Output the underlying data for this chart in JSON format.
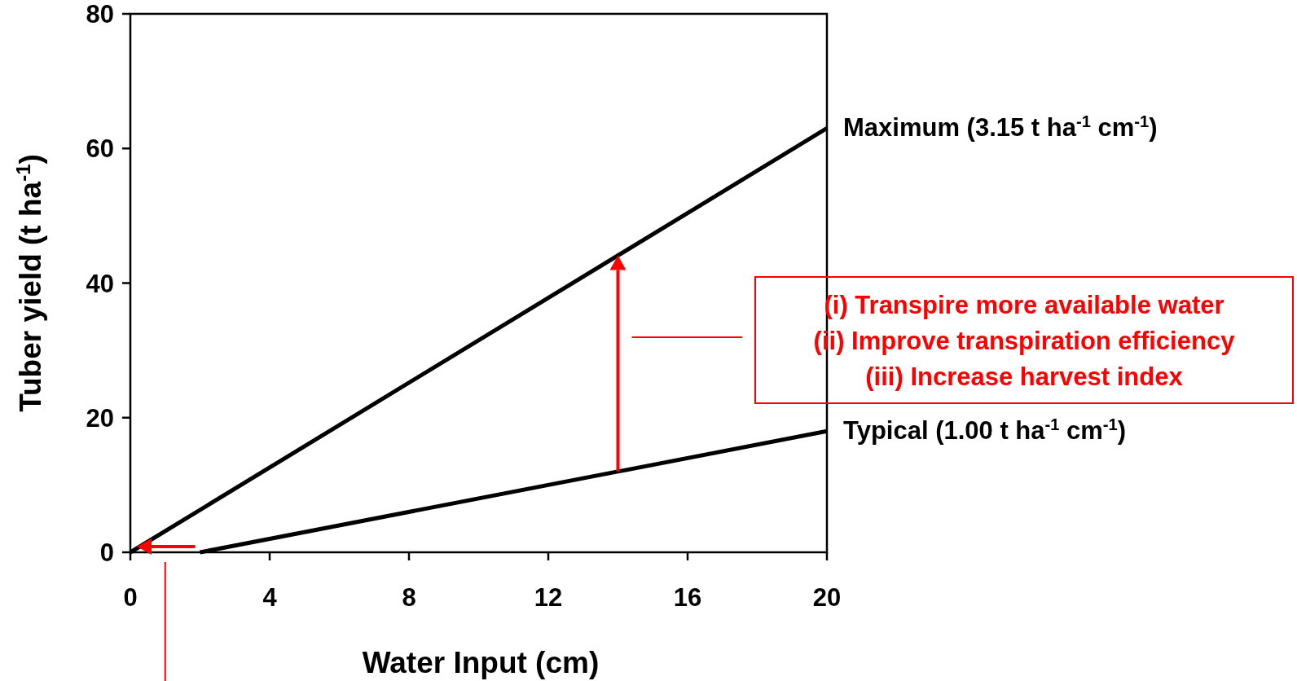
{
  "chart_data": {
    "type": "line",
    "xlabel": "Water Input (cm)",
    "ylabel": "Tuber yield (t ha$^{-1}$)",
    "series": [
      {
        "name": "Maximum (3.15 t ha$^{-1}$ cm$^{-1}$)",
        "color": "#000000",
        "x": [
          0,
          20
        ],
        "values": [
          0,
          63
        ]
      },
      {
        "name": "Typical (1.00 t ha$^{-1}$ cm$^{-1}$)",
        "color": "#000000",
        "x": [
          2,
          20
        ],
        "values": [
          0,
          18
        ]
      }
    ],
    "annotations": [
      "(i) Transpire more available water\n(ii) Improve transpiration efficiency\n(iii) Increase harvest index"
    ],
    "xlim": [
      0,
      20
    ],
    "xticks": [
      0,
      4,
      8,
      12,
      16,
      20
    ],
    "ylim": [
      0,
      80
    ],
    "yticks": [
      0,
      20,
      40,
      60,
      80
    ],
    "grid": false,
    "marker": "none",
    "line_style": "solid"
  }
}
